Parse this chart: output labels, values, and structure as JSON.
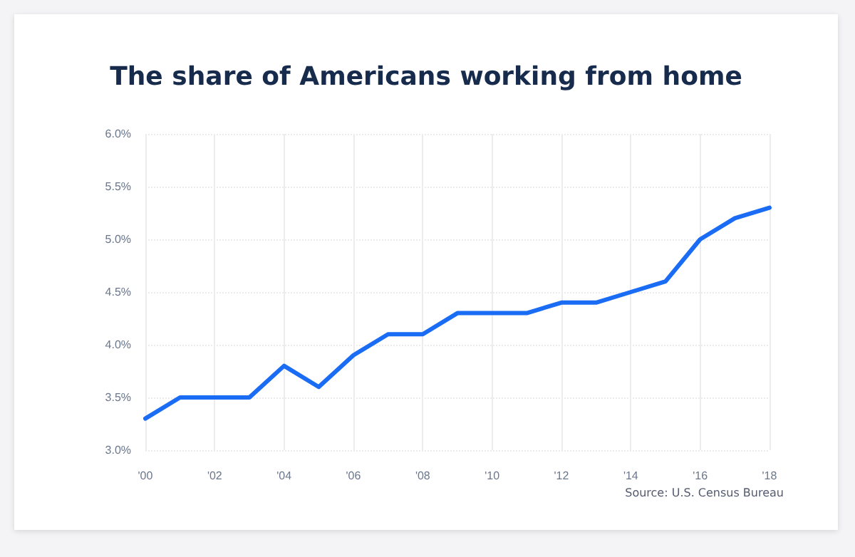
{
  "chart_data": {
    "type": "line",
    "title": "The share of Americans working from home",
    "x": [
      2000,
      2001,
      2002,
      2003,
      2004,
      2005,
      2006,
      2007,
      2008,
      2009,
      2010,
      2011,
      2012,
      2013,
      2014,
      2015,
      2016,
      2017,
      2018
    ],
    "series": [
      {
        "color": "#1a6cf5",
        "values": [
          3.3,
          3.5,
          3.5,
          3.5,
          3.8,
          3.6,
          3.9,
          4.1,
          4.1,
          4.3,
          4.3,
          4.3,
          4.4,
          4.4,
          4.5,
          4.6,
          5.0,
          5.2,
          5.3
        ]
      }
    ],
    "xlim": [
      2000,
      2018
    ],
    "xticks": [
      {
        "value": 2000,
        "label": "'00"
      },
      {
        "value": 2002,
        "label": "'02"
      },
      {
        "value": 2004,
        "label": "'04"
      },
      {
        "value": 2006,
        "label": "'06"
      },
      {
        "value": 2008,
        "label": "'08"
      },
      {
        "value": 2010,
        "label": "'10"
      },
      {
        "value": 2012,
        "label": "'12"
      },
      {
        "value": 2014,
        "label": "'14"
      },
      {
        "value": 2016,
        "label": "'16"
      },
      {
        "value": 2018,
        "label": "'18"
      }
    ],
    "ylim": [
      3,
      6
    ],
    "yticks": [
      {
        "value": 3,
        "label": "3.0%"
      },
      {
        "value": 3.5,
        "label": "3.5%"
      },
      {
        "value": 4,
        "label": "4.0%"
      },
      {
        "value": 4.5,
        "label": "4.5%"
      },
      {
        "value": 5,
        "label": "5.0%"
      },
      {
        "value": 5.5,
        "label": "5.5%"
      },
      {
        "value": 6,
        "label": "6.0%"
      }
    ],
    "grid": true,
    "marker": "none",
    "line_style": "solid",
    "annotations": [
      "Source: U.S. Census Bureau"
    ]
  }
}
